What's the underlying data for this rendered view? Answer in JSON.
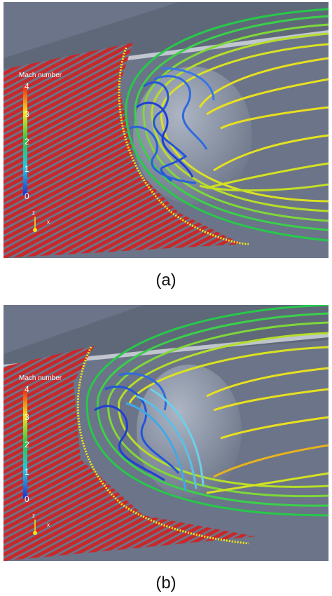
{
  "panels": [
    {
      "id": "a",
      "caption": "(a)",
      "legend": {
        "title": "Mach number",
        "ticks": [
          "4",
          "3",
          "2",
          "1",
          "0"
        ]
      },
      "axes": {
        "z": "z",
        "x": "x"
      }
    },
    {
      "id": "b",
      "caption": "(b)",
      "legend": {
        "title": "Mach number",
        "ticks": [
          "4",
          "3",
          "2",
          "1",
          "0"
        ]
      },
      "axes": {
        "z": "z",
        "x": "x"
      }
    }
  ],
  "colors": {
    "background": "#6b7488",
    "floor_stripe": "#c8282a",
    "floor_gap": "#6b7488",
    "sphere": "#8f9aac",
    "colormap": [
      "#1b2fd4",
      "#20c8e8",
      "#27c94a",
      "#f4e51a",
      "#e8201a"
    ]
  }
}
